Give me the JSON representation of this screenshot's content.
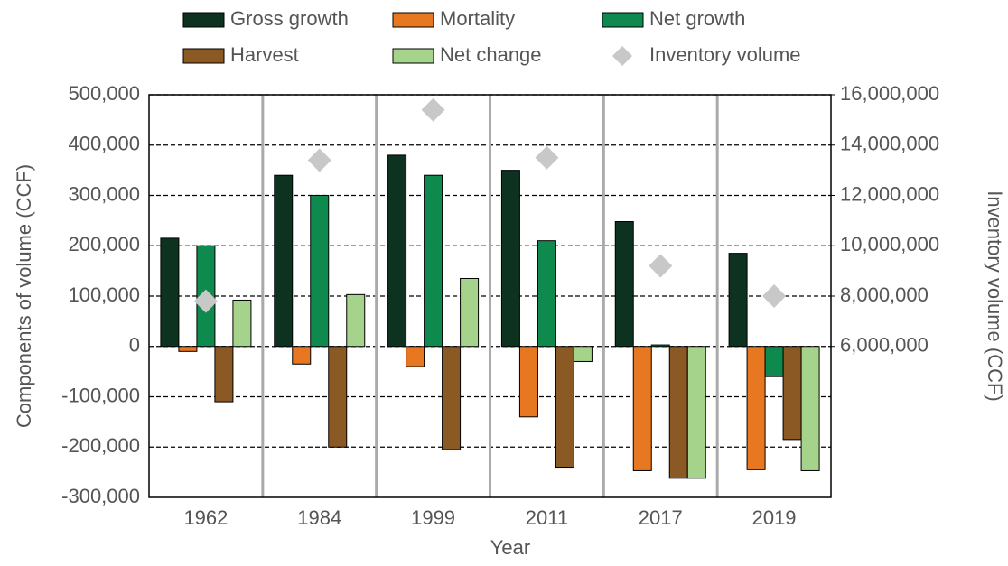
{
  "chart_data": {
    "type": "bar",
    "x_label": "Year",
    "y_label": "Components of volume  (CCF)",
    "y2_label": "Inventory volume (CCF)",
    "categories": [
      "1962",
      "1984",
      "1999",
      "2011",
      "2017",
      "2019"
    ],
    "series": [
      {
        "name": "Gross growth",
        "color": "#0d3320",
        "values": [
          215000,
          340000,
          380000,
          350000,
          248000,
          185000
        ]
      },
      {
        "name": "Mortality",
        "color": "#e87722",
        "values": [
          -10000,
          -35000,
          -40000,
          -140000,
          -247000,
          -245000
        ]
      },
      {
        "name": "Net growth",
        "color": "#0f8a4e",
        "values": [
          200000,
          300000,
          340000,
          210000,
          3000,
          -60000
        ]
      },
      {
        "name": "Harvest",
        "color": "#8b5a24",
        "values": [
          -110000,
          -200000,
          -205000,
          -240000,
          -262000,
          -185000
        ]
      },
      {
        "name": "Net change",
        "color": "#a6d38b",
        "values": [
          92000,
          103000,
          135000,
          -30000,
          -262000,
          -247000
        ]
      },
      {
        "name": "Inventory volume",
        "color": "#c8c8c8",
        "marker": "diamond",
        "axis": "y2",
        "values": [
          7800000,
          13400000,
          15400000,
          13500000,
          9200000,
          8000000
        ]
      }
    ],
    "ylim": [
      -300000,
      500000
    ],
    "yticks": [
      {
        "value": -300000,
        "label": "-300,000"
      },
      {
        "value": -200000,
        "label": "-200,000"
      },
      {
        "value": -100000,
        "label": "-100,000"
      },
      0,
      {
        "value": 100000,
        "label": "100,000"
      },
      {
        "value": 200000,
        "label": "200,000"
      },
      {
        "value": 300000,
        "label": "300,000"
      },
      {
        "value": 400000,
        "label": "400,000"
      },
      {
        "value": 500000,
        "label": "500,000"
      }
    ],
    "y2lim": [
      0,
      16000000
    ],
    "y2ticks": [
      {
        "value": 6000000,
        "label": "6,000,000"
      },
      {
        "value": 8000000,
        "label": "8,000,000"
      },
      {
        "value": 10000000,
        "label": "10,000,000"
      },
      {
        "value": 12000000,
        "label": "12,000,000"
      },
      {
        "value": 14000000,
        "label": "14,000,000"
      },
      {
        "value": 16000000,
        "label": "16,000,000"
      }
    ],
    "grid": true
  }
}
